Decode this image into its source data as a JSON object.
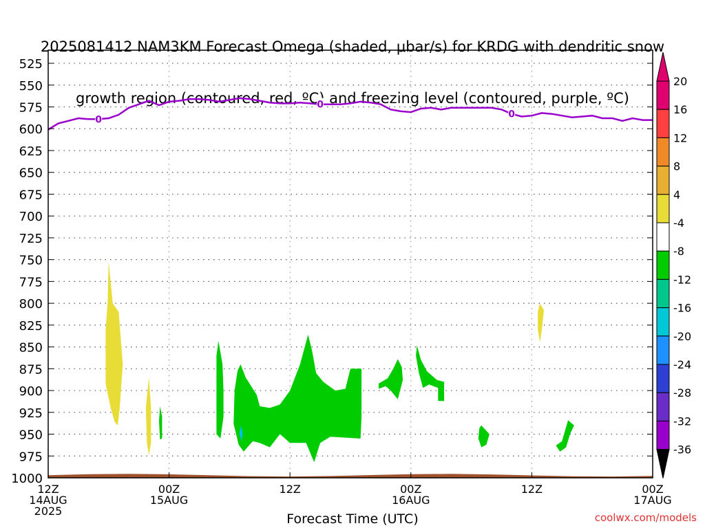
{
  "title_line1": "2025081412 NAM3KM Forecast Omega (shaded, μbar/s) for KRDG with dendritic snow",
  "title_line2": "growth region (contoured, red, ºC) and freezing level (contoured, purple, ºC)",
  "credit": "coolwx.com/models",
  "colors": {
    "freezing_line": "#9900cc",
    "ground": "#a0522d",
    "yellow": "#e8dc36",
    "green": "#00cc00",
    "cyan": "#00bfff"
  },
  "chart_data": {
    "type": "heatmap",
    "xlabel": "Forecast Time (UTC)",
    "ylabel": "",
    "x_unit": "hours since 2025-08-14 12Z",
    "xlim": [
      0,
      60
    ],
    "ylim": [
      1000,
      510
    ],
    "y_ticks": [
      525,
      550,
      575,
      600,
      625,
      650,
      675,
      700,
      725,
      750,
      775,
      800,
      825,
      850,
      875,
      900,
      925,
      950,
      975,
      1000
    ],
    "x_ticks": [
      {
        "x": 0,
        "lines": [
          "12Z",
          "14AUG",
          "2025"
        ]
      },
      {
        "x": 12,
        "lines": [
          "00Z",
          "15AUG"
        ]
      },
      {
        "x": 24,
        "lines": [
          "12Z"
        ]
      },
      {
        "x": 36,
        "lines": [
          "00Z",
          "16AUG"
        ]
      },
      {
        "x": 48,
        "lines": [
          "12Z"
        ]
      },
      {
        "x": 60,
        "lines": [
          "00Z",
          "17AUG"
        ]
      }
    ],
    "colorbar": {
      "levels": [
        -36,
        -32,
        -28,
        -24,
        -20,
        -16,
        -12,
        -8,
        -4,
        4,
        8,
        12,
        16,
        20
      ],
      "colors": [
        "#a9a9a9",
        "#9900cc",
        "#6a2dc8",
        "#2e3fd4",
        "#1e90ff",
        "#00c8d7",
        "#00c78c",
        "#00cc00",
        "#ffffff",
        "#e8dc36",
        "#e8b030",
        "#f08a28",
        "#ff4040",
        "#e0006e"
      ]
    },
    "freezing_level": {
      "label": "0",
      "x": [
        0,
        1,
        2,
        3,
        4,
        5,
        6,
        7,
        8,
        9,
        10,
        11,
        12,
        13,
        14,
        15,
        16,
        17,
        18,
        19,
        20,
        21,
        22,
        23,
        24,
        25,
        26,
        27,
        28,
        29,
        30,
        31,
        32,
        33,
        34,
        35,
        36,
        37,
        38,
        39,
        40,
        41,
        42,
        43,
        44,
        45,
        46,
        47,
        48,
        49,
        50,
        51,
        52,
        53,
        54,
        55,
        56,
        57,
        58,
        59,
        60
      ],
      "y": [
        601,
        594,
        591,
        588,
        589,
        589,
        588,
        584,
        576,
        572,
        568,
        573,
        569,
        568,
        566,
        566,
        567,
        569,
        567,
        565,
        566,
        568,
        570,
        571,
        571,
        570,
        571,
        572,
        572,
        572,
        571,
        569,
        570,
        572,
        578,
        580,
        581,
        577,
        576,
        578,
        576,
        576,
        576,
        576,
        576,
        578,
        583,
        586,
        585,
        582,
        583,
        585,
        587,
        586,
        585,
        588,
        588,
        591,
        588,
        590,
        590
      ]
    },
    "regions": [
      {
        "color": "yellow",
        "points": [
          [
            6.0,
            752
          ],
          [
            6.4,
            800
          ],
          [
            7.0,
            810
          ],
          [
            7.4,
            870
          ],
          [
            7.1,
            920
          ],
          [
            6.9,
            940
          ],
          [
            6.6,
            936
          ],
          [
            6.2,
            920
          ],
          [
            5.7,
            892
          ],
          [
            5.7,
            830
          ],
          [
            5.9,
            800
          ]
        ]
      },
      {
        "color": "yellow",
        "points": [
          [
            10.0,
            885
          ],
          [
            10.2,
            920
          ],
          [
            10.2,
            960
          ],
          [
            10.0,
            974
          ],
          [
            9.8,
            960
          ],
          [
            9.7,
            920
          ]
        ]
      },
      {
        "color": "green",
        "points": [
          [
            11.1,
            918
          ],
          [
            11.3,
            930
          ],
          [
            11.3,
            955
          ],
          [
            11.1,
            956
          ],
          [
            11.0,
            935
          ]
        ]
      },
      {
        "color": "green",
        "points": [
          [
            16.9,
            843
          ],
          [
            17.3,
            870
          ],
          [
            17.4,
            900
          ],
          [
            17.4,
            930
          ],
          [
            17.1,
            955
          ],
          [
            16.7,
            950
          ],
          [
            16.7,
            900
          ],
          [
            16.7,
            860
          ]
        ]
      },
      {
        "color": "green",
        "points": [
          [
            19.1,
            870
          ],
          [
            19.6,
            885
          ],
          [
            20.7,
            905
          ],
          [
            21.0,
            918
          ],
          [
            22.0,
            920
          ],
          [
            23.0,
            916
          ],
          [
            24.0,
            900
          ],
          [
            25.0,
            870
          ],
          [
            25.8,
            836
          ],
          [
            26.2,
            855
          ],
          [
            26.6,
            880
          ],
          [
            27.3,
            890
          ],
          [
            28.5,
            900
          ],
          [
            29.5,
            898
          ],
          [
            30.0,
            875
          ],
          [
            31.1,
            875
          ],
          [
            31.1,
            930
          ],
          [
            31.0,
            955
          ],
          [
            28.0,
            953
          ],
          [
            27.0,
            960
          ],
          [
            26.4,
            982
          ],
          [
            25.6,
            960
          ],
          [
            24.0,
            960
          ],
          [
            23.0,
            950
          ],
          [
            22.0,
            965
          ],
          [
            21.0,
            960
          ],
          [
            20.3,
            958
          ],
          [
            19.4,
            970
          ],
          [
            18.9,
            962
          ],
          [
            18.4,
            938
          ],
          [
            18.5,
            900
          ],
          [
            18.8,
            877
          ]
        ]
      },
      {
        "color": "cyan",
        "points": [
          [
            19.1,
            940
          ],
          [
            19.3,
            948
          ],
          [
            19.2,
            958
          ],
          [
            19.0,
            950
          ]
        ]
      },
      {
        "color": "green",
        "points": [
          [
            32.8,
            892
          ],
          [
            33.7,
            886
          ],
          [
            34.2,
            876
          ],
          [
            34.7,
            864
          ],
          [
            35.1,
            873
          ],
          [
            35.2,
            888
          ],
          [
            34.7,
            910
          ],
          [
            34.0,
            900
          ],
          [
            33.5,
            895
          ],
          [
            32.8,
            898
          ]
        ]
      },
      {
        "color": "green",
        "points": [
          [
            36.6,
            848
          ],
          [
            37.0,
            865
          ],
          [
            37.6,
            878
          ],
          [
            38.6,
            888
          ],
          [
            39.3,
            890
          ],
          [
            39.3,
            912
          ],
          [
            38.7,
            912
          ],
          [
            38.7,
            897
          ],
          [
            37.8,
            893
          ],
          [
            37.2,
            897
          ],
          [
            36.8,
            880
          ],
          [
            36.5,
            860
          ]
        ]
      },
      {
        "color": "green",
        "points": [
          [
            43.0,
            940
          ],
          [
            43.8,
            950
          ],
          [
            43.5,
            962
          ],
          [
            43.0,
            965
          ],
          [
            42.7,
            955
          ],
          [
            42.8,
            943
          ]
        ]
      },
      {
        "color": "yellow",
        "points": [
          [
            48.8,
            800
          ],
          [
            49.2,
            808
          ],
          [
            49.0,
            830
          ],
          [
            48.8,
            845
          ],
          [
            48.6,
            830
          ],
          [
            48.6,
            810
          ]
        ]
      },
      {
        "color": "green",
        "points": [
          [
            51.6,
            934
          ],
          [
            52.2,
            940
          ],
          [
            51.8,
            950
          ],
          [
            51.4,
            965
          ],
          [
            50.8,
            970
          ],
          [
            50.4,
            963
          ],
          [
            51.0,
            958
          ],
          [
            51.3,
            946
          ]
        ]
      }
    ]
  }
}
